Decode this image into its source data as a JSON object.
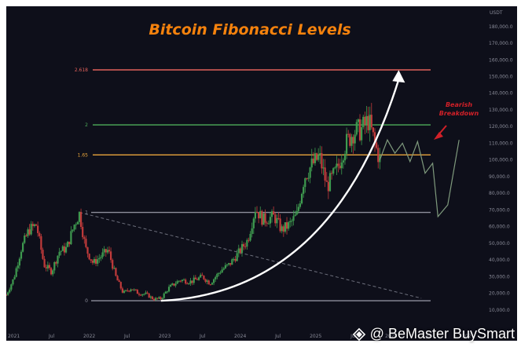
{
  "chart_data": {
    "type": "candlestick",
    "title": "Bitcoin Fibonacci Levels",
    "currency_label": "USDT",
    "y_range": [
      0,
      180000
    ],
    "y_ticks": [
      "10,000.0",
      "20,000.0",
      "30,000.0",
      "40,000.0",
      "50,000.0",
      "60,000.0",
      "70,000.0",
      "80,000.0",
      "90,000.0",
      "100,000.0",
      "110,000.0",
      "120,000.0",
      "130,000.0",
      "140,000.0",
      "150,000.0",
      "160,000.0",
      "170,000.0",
      "180,000.0"
    ],
    "x_ticks": [
      "2021",
      "Jul",
      "2022",
      "Jul",
      "2023",
      "Jul",
      "2024",
      "Jul",
      "2025",
      "Jul",
      "2026",
      "Jul",
      "202"
    ],
    "x_range": [
      2020.9,
      2027.2
    ],
    "fib_levels": [
      {
        "label": "2.618",
        "price": 154000,
        "color": "#e0605a"
      },
      {
        "label": "2",
        "price": 121000,
        "color": "#4fae5b"
      },
      {
        "label": "1.65",
        "price": 103000,
        "color": "#e9a43b"
      },
      {
        "label": "1",
        "price": 68500,
        "color": "#8d8f9c"
      },
      {
        "label": "0",
        "price": 15500,
        "color": "#8d8f9c"
      }
    ],
    "price_series": [
      [
        2020.9,
        19000
      ],
      [
        2021.0,
        29000
      ],
      [
        2021.1,
        47000
      ],
      [
        2021.2,
        58000
      ],
      [
        2021.3,
        61000
      ],
      [
        2021.4,
        37000
      ],
      [
        2021.5,
        33000
      ],
      [
        2021.6,
        45000
      ],
      [
        2021.7,
        47000
      ],
      [
        2021.8,
        61000
      ],
      [
        2021.87,
        68000
      ],
      [
        2021.95,
        47000
      ],
      [
        2022.05,
        38000
      ],
      [
        2022.15,
        42000
      ],
      [
        2022.25,
        46000
      ],
      [
        2022.35,
        30000
      ],
      [
        2022.45,
        20000
      ],
      [
        2022.55,
        23000
      ],
      [
        2022.65,
        20000
      ],
      [
        2022.75,
        19500
      ],
      [
        2022.85,
        16500
      ],
      [
        2022.95,
        16800
      ],
      [
        2023.05,
        23000
      ],
      [
        2023.2,
        28000
      ],
      [
        2023.35,
        27000
      ],
      [
        2023.5,
        30000
      ],
      [
        2023.6,
        26000
      ],
      [
        2023.75,
        34000
      ],
      [
        2023.85,
        37000
      ],
      [
        2023.95,
        42500
      ],
      [
        2024.1,
        52000
      ],
      [
        2024.2,
        71000
      ],
      [
        2024.3,
        64000
      ],
      [
        2024.45,
        66000
      ],
      [
        2024.55,
        58000
      ],
      [
        2024.65,
        61000
      ],
      [
        2024.75,
        67000
      ],
      [
        2024.85,
        90000
      ],
      [
        2024.95,
        97000
      ],
      [
        2025.05,
        102000
      ],
      [
        2025.15,
        84000
      ],
      [
        2025.28,
        94000
      ],
      [
        2025.38,
        108000
      ],
      [
        2025.5,
        117000
      ],
      [
        2025.6,
        118000
      ],
      [
        2025.7,
        124000
      ],
      [
        2025.78,
        110000
      ],
      [
        2025.85,
        100000
      ]
    ],
    "projection": [
      [
        2025.85,
        100000
      ],
      [
        2025.95,
        112000
      ],
      [
        2026.05,
        104000
      ],
      [
        2026.15,
        110000
      ],
      [
        2026.25,
        99000
      ],
      [
        2026.35,
        111000
      ],
      [
        2026.45,
        92000
      ],
      [
        2026.55,
        98000
      ],
      [
        2026.62,
        66000
      ],
      [
        2026.75,
        73000
      ],
      [
        2026.9,
        112000
      ]
    ],
    "parabolic_arrow": {
      "from": [
        2022.95,
        15500
      ],
      "to": [
        2026.1,
        152000
      ]
    },
    "descending_line": {
      "from": [
        2021.87,
        68500
      ],
      "to": [
        2026.4,
        17000
      ]
    },
    "annotation": {
      "text": "Bearish Breakdown",
      "color": "#d12028"
    },
    "colors": {
      "up": "#3e9a4f",
      "down": "#c23b3b",
      "title": "#f5820d",
      "background": "#0e0f1a"
    }
  },
  "watermark": {
    "text": "@ BeMaster BuySmart"
  }
}
